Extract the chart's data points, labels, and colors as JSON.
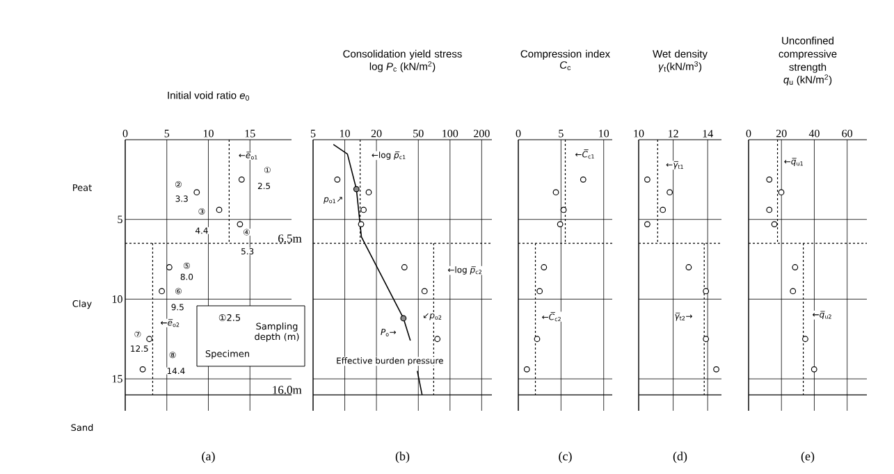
{
  "chart_data": [
    {
      "type": "scatter",
      "title": "Initial void ratio *e*$_{0}$",
      "xlabel": "(a)",
      "xlim": [
        0,
        20
      ],
      "xticks": [
        0,
        5,
        10,
        15
      ],
      "ylim": [
        17,
        0
      ],
      "yticks": [
        5,
        10,
        15
      ],
      "grid": true,
      "series": [
        {
          "marker": "circle",
          "color": "#000000",
          "x": [
            14.0,
            8.6,
            11.3,
            13.8,
            5.3,
            4.4,
            2.9,
            2.1
          ],
          "values": [
            2.5,
            3.3,
            4.4,
            5.3,
            8.0,
            9.5,
            12.5,
            14.4
          ]
        },
        {
          "type": "line",
          "marker": "none",
          "line_style": "dashed",
          "color": "#000000",
          "x": [
            12.5,
            12.5
          ],
          "values": [
            0,
            6.5
          ]
        },
        {
          "type": "line",
          "marker": "none",
          "line_style": "dashed",
          "color": "#000000",
          "x": [
            3.3,
            3.3
          ],
          "values": [
            6.5,
            16.0
          ]
        }
      ],
      "ref_lines": [
        {
          "axis": "y",
          "value": 6.5,
          "line_style": "dashed",
          "label": "6.5m"
        },
        {
          "axis": "y",
          "value": 16.0,
          "label": "16.0m"
        }
      ],
      "annotations": [
        "①",
        "2.5",
        "②",
        "3.3",
        "③",
        "4.4",
        "④",
        "5.3",
        "⑤",
        "8.0",
        "⑥",
        "9.5",
        "⑦",
        "12.5",
        "⑧",
        "14.4",
        "←*e̅*$_{o1}$",
        "←*e̅*$_{o2}$",
        "①2.5",
        "Sampling depth (m)",
        "Specimen",
        "Peat",
        "Clay",
        "Sand"
      ]
    },
    {
      "type": "scatter",
      "title": "Consolidation yield stress",
      "subtitle": "log *P*$_{c}$ (kN/m$^{2}$)",
      "xlabel": "(b)",
      "log": "x",
      "xlim": [
        5,
        250
      ],
      "xticks": [
        5,
        10,
        20,
        50,
        100,
        200
      ],
      "ylim": [
        17,
        0
      ],
      "yticks": [
        5,
        10,
        15
      ],
      "tick_labels": "x",
      "grid": true,
      "series": [
        {
          "marker": "circle",
          "color": "#000000",
          "x": [
            8.5,
            16.9,
            15.1,
            14.3,
            36.9,
            57.3,
            75.9
          ],
          "values": [
            2.5,
            3.3,
            4.4,
            5.3,
            8.0,
            9.5,
            12.5
          ]
        },
        {
          "marker": "circle",
          "color": "#8c8c8c",
          "x": [
            12.9,
            36.1
          ],
          "values": [
            3.1,
            11.2
          ]
        },
        {
          "type": "line",
          "marker": "none",
          "line_style": "solid",
          "color": "#000000",
          "x": [
            7.8,
            10.6,
            12.9,
            14.4,
            36.1,
            42.0,
            null,
            48.9,
            54.3
          ],
          "values": [
            0.3,
            0.9,
            3.1,
            6.1,
            11.2,
            12.6,
            null,
            14.5,
            16.0
          ]
        },
        {
          "type": "line",
          "marker": "none",
          "line_style": "dashed",
          "color": "#000000",
          "x": [
            14,
            14
          ],
          "values": [
            0,
            6.5
          ]
        },
        {
          "type": "line",
          "marker": "none",
          "line_style": "dashed",
          "color": "#000000",
          "x": [
            70,
            70
          ],
          "values": [
            6.5,
            16.0
          ]
        }
      ],
      "ref_lines": [
        {
          "axis": "y",
          "value": 6.5,
          "line_style": "dashed"
        },
        {
          "axis": "y",
          "value": 16.0
        }
      ],
      "annotations": [
        "←log *p̅*$_{c1}$",
        "*p*$_{o1}$↗",
        "↙*p*$_{o2}$",
        "*P*$_{o}$→",
        "Effective burden pressure",
        "←log *p̅*$_{c2}$"
      ]
    },
    {
      "type": "scatter",
      "title": "Compression index",
      "subtitle": "*C*$_{c}$",
      "xlabel": "(c)",
      "xlim": [
        0,
        11
      ],
      "xticks": [
        0,
        5,
        10
      ],
      "ylim": [
        17,
        0
      ],
      "yticks": [
        5,
        10,
        15
      ],
      "tick_labels": "x",
      "grid": true,
      "series": [
        {
          "marker": "circle",
          "color": "#000000",
          "x": [
            7.6,
            4.4,
            5.3,
            4.9,
            3.0,
            2.5,
            2.2,
            1.0
          ],
          "values": [
            2.5,
            3.3,
            4.4,
            5.3,
            8.0,
            9.5,
            12.5,
            14.4
          ]
        },
        {
          "type": "line",
          "marker": "none",
          "line_style": "dashed",
          "color": "#000000",
          "x": [
            5.5,
            5.5
          ],
          "values": [
            0,
            6.5
          ]
        },
        {
          "type": "line",
          "marker": "none",
          "line_style": "dashed",
          "color": "#000000",
          "x": [
            2.0,
            2.0
          ],
          "values": [
            6.5,
            16.0
          ]
        }
      ],
      "ref_lines": [
        {
          "axis": "y",
          "value": 6.5,
          "line_style": "dashed"
        },
        {
          "axis": "y",
          "value": 16.0
        }
      ],
      "annotations": [
        "←*C̅*$_{c1}$",
        "←*C̅*$_{c2}$"
      ]
    },
    {
      "type": "scatter",
      "title": "Wet density",
      "subtitle": "*γ*$_{t}$(kN/m$^{3}$)",
      "xlabel": "(d)",
      "xlim": [
        10,
        14.8
      ],
      "xticks": [
        10,
        12,
        14
      ],
      "ylim": [
        17,
        0
      ],
      "yticks": [
        5,
        10,
        15
      ],
      "tick_labels": "x",
      "grid": true,
      "series": [
        {
          "marker": "circle",
          "color": "#000000",
          "x": [
            10.5,
            11.8,
            11.4,
            10.5,
            12.9,
            13.9,
            13.9,
            14.5
          ],
          "values": [
            2.5,
            3.3,
            4.4,
            5.3,
            8.0,
            9.5,
            12.5,
            14.4
          ]
        },
        {
          "type": "line",
          "marker": "none",
          "line_style": "dashed",
          "color": "#000000",
          "x": [
            11.1,
            11.1
          ],
          "values": [
            0,
            6.5
          ]
        },
        {
          "type": "line",
          "marker": "none",
          "line_style": "dashed",
          "color": "#000000",
          "x": [
            13.8,
            13.8
          ],
          "values": [
            6.5,
            16.0
          ]
        }
      ],
      "ref_lines": [
        {
          "axis": "y",
          "value": 6.5,
          "line_style": "dashed"
        },
        {
          "axis": "y",
          "value": 16.0
        }
      ],
      "annotations": [
        "←*γ̅*$_{t1}$",
        "*γ̅*$_{t2}$→"
      ]
    },
    {
      "type": "scatter",
      "title": "Unconfined compressive strength",
      "subtitle": "*q*$_{u}$ (kN/m$^{2}$)",
      "xlabel": "(e)",
      "xlim": [
        0,
        72
      ],
      "xticks": [
        0,
        20,
        40,
        60
      ],
      "ylim": [
        17,
        0
      ],
      "yticks": [
        5,
        10,
        15
      ],
      "tick_labels": "x",
      "grid": true,
      "series": [
        {
          "marker": "circle",
          "color": "#000000",
          "x": [
            12.6,
            19.9,
            12.6,
            15.7,
            28.3,
            27.0,
            34.5,
            39.9
          ],
          "values": [
            2.5,
            3.3,
            4.4,
            5.3,
            8.0,
            9.5,
            12.5,
            14.4
          ]
        },
        {
          "type": "line",
          "marker": "none",
          "line_style": "dashed",
          "color": "#000000",
          "x": [
            17.6,
            17.6
          ],
          "values": [
            0,
            6.5
          ]
        },
        {
          "type": "line",
          "marker": "none",
          "line_style": "dashed",
          "color": "#000000",
          "x": [
            33.3,
            33.3
          ],
          "values": [
            6.5,
            16.0
          ]
        }
      ],
      "ref_lines": [
        {
          "axis": "y",
          "value": 6.5,
          "line_style": "dashed"
        },
        {
          "axis": "y",
          "value": 16.0
        }
      ],
      "annotations": [
        "←*q̅*$_{u1}$",
        "←*q̅*$_{u2}$"
      ]
    }
  ]
}
